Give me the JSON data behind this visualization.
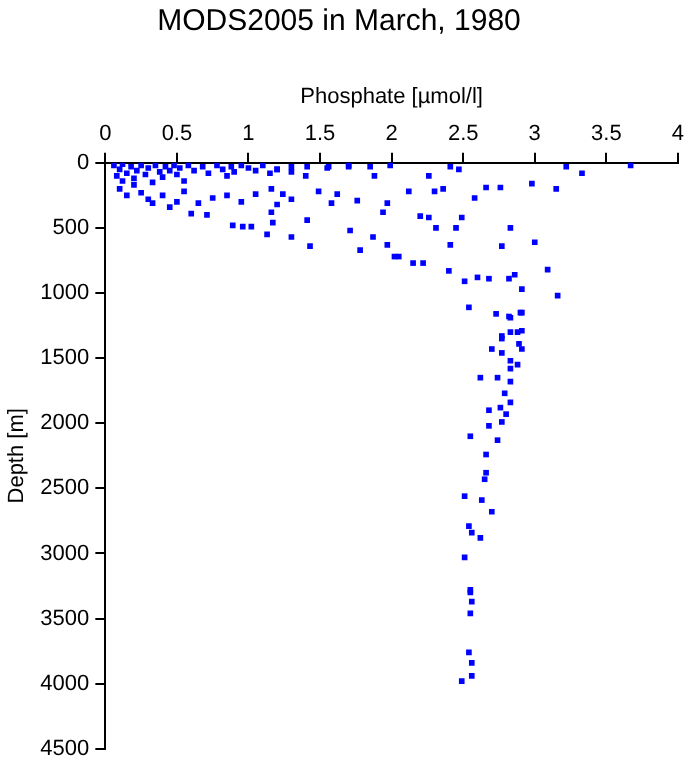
{
  "chart_data": {
    "type": "scatter",
    "title": "MODS2005 in March, 1980",
    "xlabel": "Phosphate [µmol/l]",
    "ylabel": "Depth [m]",
    "xlim": [
      0,
      4
    ],
    "xticks": [
      0,
      0.5,
      1,
      1.5,
      2,
      2.5,
      3,
      3.5,
      4
    ],
    "ylim": [
      4500,
      0
    ],
    "yticks": [
      0,
      500,
      1000,
      1500,
      2000,
      2500,
      3000,
      3500,
      4000,
      4500
    ],
    "grid": false,
    "legend": false,
    "marker": "square",
    "series": [
      {
        "color": "#0000ff",
        "x": [
          0.06,
          0.1,
          0.12,
          0.15,
          0.18,
          0.2,
          0.22,
          0.25,
          0.28,
          0.3,
          0.33,
          0.35,
          0.38,
          0.4,
          0.42,
          0.45,
          0.48,
          0.5,
          0.52,
          0.55,
          0.58,
          0.62,
          0.68,
          0.72,
          0.78,
          0.82,
          0.85,
          0.88,
          0.9,
          0.95,
          1.0,
          1.05,
          1.1,
          1.15,
          1.2,
          1.3,
          1.4,
          1.55,
          1.7,
          0.1,
          0.15,
          0.25,
          0.3,
          0.4,
          0.5,
          0.55,
          0.65,
          0.75,
          0.85,
          0.95,
          1.05,
          1.2,
          1.3,
          0.45,
          0.2,
          0.12,
          0.08,
          1.2,
          1.3,
          1.41,
          1.56,
          1.7,
          1.85,
          1.88,
          1.16,
          1.24,
          1.49,
          1.62,
          1.58,
          1.76,
          1.97,
          0.33,
          0.6,
          0.71,
          0.89,
          0.96,
          1.02,
          1.13,
          1.3,
          1.41,
          1.43,
          1.71,
          1.78,
          1.97,
          2.02,
          1.16,
          1.17,
          1.99,
          2.26,
          2.41,
          2.47,
          2.98,
          3.22,
          3.33,
          3.67,
          3.15,
          2.83,
          3.0,
          3.09,
          3.16,
          2.49,
          2.45,
          2.41,
          2.15,
          2.22,
          2.05,
          1.87,
          2.36,
          2.12,
          1.94,
          2.2,
          2.31,
          2.4,
          2.51,
          2.54,
          2.6,
          2.68,
          2.77,
          2.82,
          2.86,
          2.91,
          2.73,
          2.83,
          2.91,
          2.77,
          2.88,
          2.89,
          2.66,
          2.76,
          2.58,
          2.3,
          2.26,
          2.82,
          2.9,
          2.77,
          2.83,
          2.91,
          2.91,
          2.7,
          2.77,
          2.83,
          2.88,
          2.83,
          2.62,
          2.74,
          2.83,
          2.79,
          2.83,
          2.68,
          2.76,
          2.8,
          2.77,
          2.68,
          2.55,
          2.74,
          2.66,
          2.66,
          2.65,
          2.51,
          2.63,
          2.7,
          2.54,
          2.56,
          2.62,
          2.51,
          2.55,
          2.55,
          2.56,
          2.55,
          2.54,
          2.56,
          2.56,
          2.49
        ],
        "values": [
          20,
          50,
          10,
          80,
          30,
          120,
          60,
          20,
          90,
          40,
          150,
          20,
          70,
          110,
          30,
          60,
          20,
          90,
          40,
          140,
          20,
          60,
          30,
          80,
          20,
          50,
          100,
          30,
          70,
          20,
          40,
          60,
          20,
          80,
          50,
          30,
          100,
          40,
          20,
          200,
          250,
          230,
          280,
          250,
          300,
          220,
          310,
          270,
          250,
          300,
          240,
          320,
          280,
          340,
          170,
          140,
          100,
          50,
          70,
          30,
          30,
          30,
          30,
          100,
          200,
          240,
          220,
          240,
          310,
          290,
          310,
          310,
          390,
          400,
          480,
          490,
          490,
          550,
          570,
          440,
          640,
          520,
          670,
          630,
          720,
          380,
          460,
          20,
          100,
          30,
          50,
          160,
          30,
          80,
          20,
          200,
          500,
          610,
          820,
          1020,
          420,
          500,
          630,
          770,
          770,
          720,
          570,
          200,
          220,
          380,
          410,
          500,
          830,
          910,
          1110,
          880,
          890,
          640,
          890,
          860,
          970,
          1160,
          1190,
          1150,
          1350,
          1300,
          1390,
          190,
          190,
          270,
          220,
          420,
          1180,
          1150,
          1330,
          1300,
          1290,
          1430,
          1430,
          1460,
          1520,
          1550,
          1580,
          1650,
          1650,
          1680,
          1770,
          1840,
          1900,
          1880,
          1930,
          1990,
          2020,
          2100,
          2130,
          2240,
          2380,
          2430,
          2560,
          2590,
          2680,
          2790,
          2840,
          2880,
          3030,
          3280,
          3300,
          3370,
          3460,
          3760,
          3840,
          3940,
          3980
        ]
      }
    ]
  }
}
